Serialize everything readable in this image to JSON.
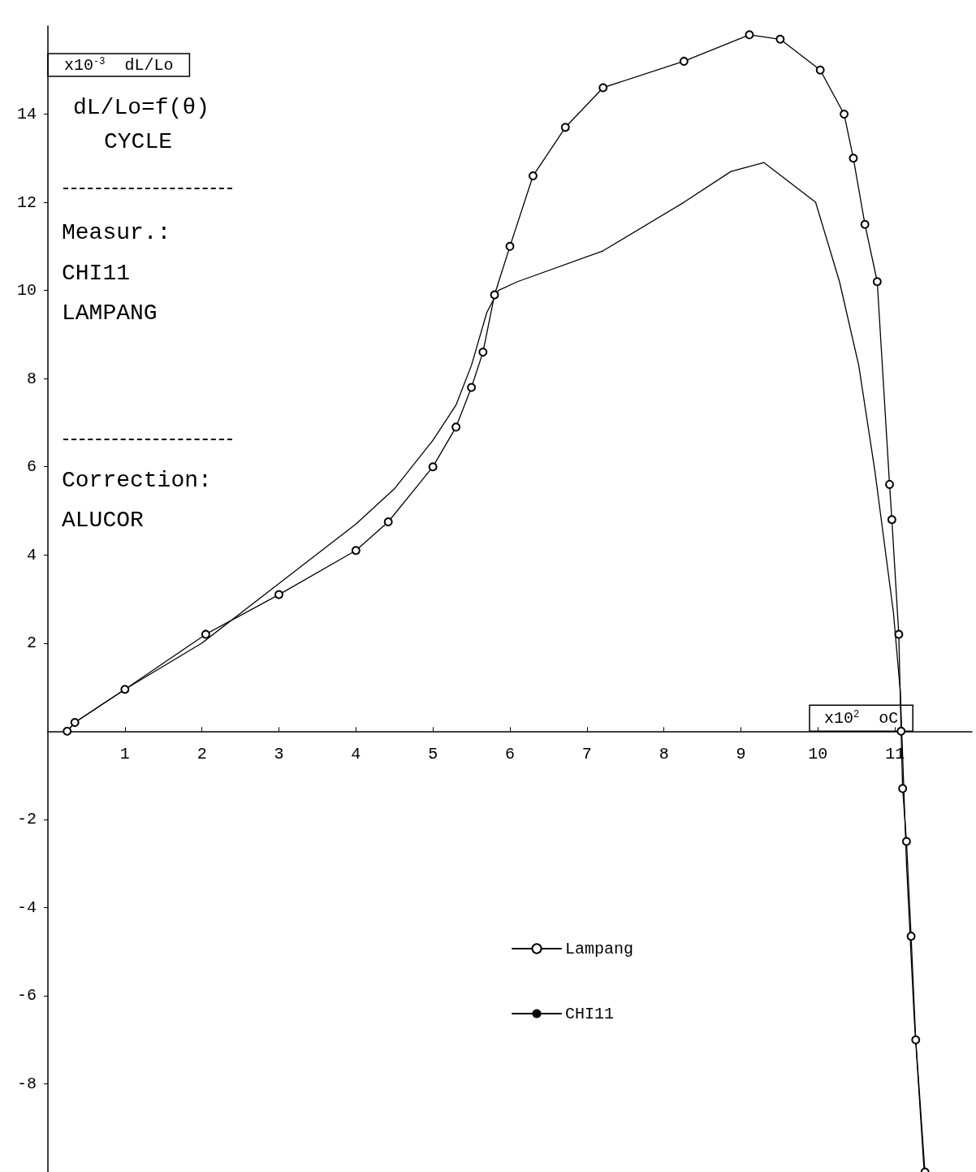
{
  "chart_data": {
    "type": "line",
    "title": "dL/Lo=f(θ)",
    "subtitle": "CYCLE",
    "xlabel": "x10$^{2}$  oC",
    "ylabel": "x10$^{-3}$  dL/Lo",
    "annotations": [
      "Measur.:",
      "CHI11",
      "LAMPANG",
      "Correction:",
      "ALUCOR"
    ],
    "xlim": [
      0,
      12
    ],
    "xticks": [
      1,
      2,
      3,
      4,
      5,
      6,
      7,
      8,
      9,
      10,
      11
    ],
    "ylim": [
      -10,
      16
    ],
    "yticks": [
      -8,
      -6,
      -4,
      -2,
      2,
      4,
      6,
      8,
      10,
      12,
      14
    ],
    "grid": false,
    "legend": "bottom",
    "line_style": "solid",
    "series": [
      {
        "name": "Lampang",
        "color": "#000000",
        "marker": "circle",
        "x": [
          0.25,
          0.35,
          1,
          2.05,
          3,
          4,
          4.42,
          5,
          5.3,
          5.5,
          5.65,
          5.8,
          6,
          6.3,
          6.72,
          7.21,
          8.26,
          9.11,
          9.51,
          10.03,
          10.34,
          10.46,
          10.61,
          10.77,
          10.93,
          10.96,
          11.05,
          11.08,
          11.1,
          11.15,
          11.21,
          11.27,
          11.39
        ],
        "values": [
          0,
          0.2,
          0.95,
          2.2,
          3.1,
          4.1,
          4.75,
          6,
          6.9,
          7.8,
          8.6,
          9.9,
          11,
          12.6,
          13.7,
          14.6,
          15.2,
          15.8,
          15.7,
          15,
          14,
          13,
          11.5,
          10.2,
          5.6,
          4.8,
          2.2,
          0,
          -1.3,
          -2.5,
          -4.65,
          -7,
          -10
        ]
      },
      {
        "name": "CHI11",
        "color": "#000000",
        "marker": "none",
        "x": [
          0.25,
          0.35,
          1,
          2,
          3,
          4,
          4.5,
          5,
          5.3,
          5.5,
          5.7,
          5.85,
          6.1,
          7.21,
          8.26,
          8.87,
          9.3,
          9.97,
          10.28,
          10.53,
          10.74,
          10.98,
          11.07,
          11.15,
          11.25,
          11.38
        ],
        "values": [
          0,
          0.2,
          0.95,
          2,
          3.35,
          4.7,
          5.5,
          6.6,
          7.4,
          8.3,
          9.5,
          10,
          10.2,
          10.9,
          12,
          12.7,
          12.9,
          12,
          10.2,
          8.3,
          5.9,
          2.7,
          0.9,
          -3,
          -6.5,
          -10
        ]
      }
    ]
  }
}
